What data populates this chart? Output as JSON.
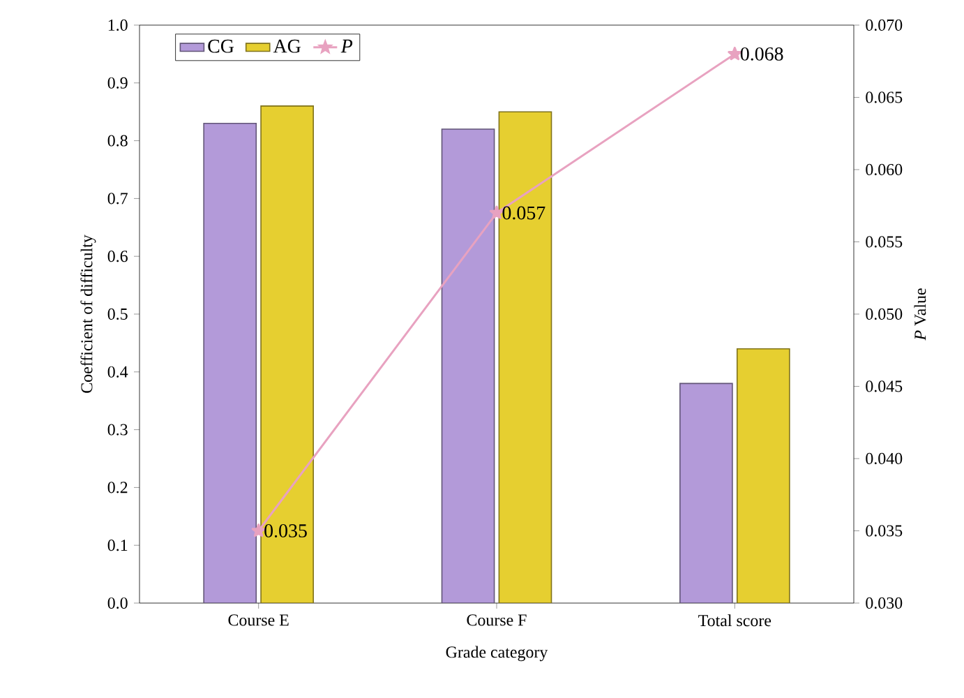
{
  "chart_data": {
    "type": "bar",
    "xlabel": "Grade category",
    "ylabel": "Coefficient of difficulty",
    "y2label": "*P* Value",
    "categories": [
      "Course E",
      "Course F",
      "Total score"
    ],
    "series": [
      {
        "name": "CG",
        "color": "#b39ad9",
        "values": [
          0.83,
          0.82,
          0.38
        ]
      },
      {
        "name": "AG",
        "color": "#e6cf30",
        "values": [
          0.86,
          0.85,
          0.44
        ]
      },
      {
        "name": "P",
        "type": "line",
        "axis": "y2",
        "color": "#e8a2c0",
        "marker": "star",
        "values": [
          0.035,
          0.057,
          0.068
        ],
        "value_labels": [
          "0.035",
          "0.057",
          "0.068"
        ]
      }
    ],
    "ylim": [
      0,
      1.0
    ],
    "yticks": [
      {
        "value": 0,
        "label": "0.0"
      },
      {
        "value": 0.1,
        "label": "0.1"
      },
      {
        "value": 0.2,
        "label": "0.2"
      },
      {
        "value": 0.3,
        "label": "0.3"
      },
      {
        "value": 0.4,
        "label": "0.4"
      },
      {
        "value": 0.5,
        "label": "0.5"
      },
      {
        "value": 0.6,
        "label": "0.6"
      },
      {
        "value": 0.7,
        "label": "0.7"
      },
      {
        "value": 0.8,
        "label": "0.8"
      },
      {
        "value": 0.9,
        "label": "0.9"
      },
      {
        "value": 1.0,
        "label": "1.0"
      }
    ],
    "y2lim": [
      0.03,
      0.07
    ],
    "y2ticks": [
      {
        "value": 0.03,
        "label": "0.030"
      },
      {
        "value": 0.035,
        "label": "0.035"
      },
      {
        "value": 0.04,
        "label": "0.040"
      },
      {
        "value": 0.045,
        "label": "0.045"
      },
      {
        "value": 0.05,
        "label": "0.050"
      },
      {
        "value": 0.055,
        "label": "0.055"
      },
      {
        "value": 0.06,
        "label": "0.060"
      },
      {
        "value": 0.065,
        "label": "0.065"
      },
      {
        "value": 0.07,
        "label": "0.070"
      }
    ],
    "legend": "top left"
  }
}
